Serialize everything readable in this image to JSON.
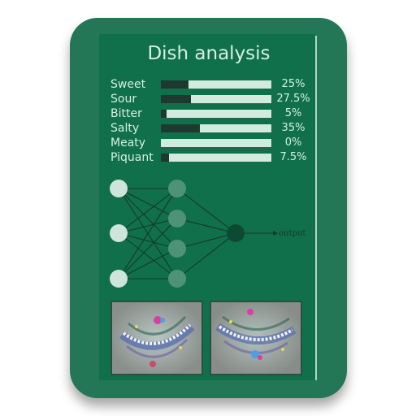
{
  "app": {
    "title": "Dish analysis"
  },
  "tastes": [
    {
      "name": "Sweet",
      "value_label": "25%",
      "value": 0.25
    },
    {
      "name": "Sour",
      "value_label": "27.5%",
      "value": 0.275
    },
    {
      "name": "Bitter",
      "value_label": "5%",
      "value": 0.05
    },
    {
      "name": "Salty",
      "value_label": "35%",
      "value": 0.35
    },
    {
      "name": "Meaty",
      "value_label": "0%",
      "value": 0.0
    },
    {
      "name": "Piquant",
      "value_label": "7.5%",
      "value": 0.075
    }
  ],
  "network": {
    "output_label": "output",
    "layers": [
      3,
      4,
      1
    ]
  },
  "colors": {
    "icon_background": "#237656",
    "panel_background": "#0f704b",
    "text": "#d7eee3",
    "bar_track": "#d3ebde",
    "bar_fill": "#1e3a30",
    "input_node": "#cfe5dc",
    "hidden_node": "#4e9379",
    "output_node": "#0d4a33"
  },
  "icons": {
    "thumbnail_1": "neural-texture-image",
    "thumbnail_2": "neural-texture-image"
  }
}
